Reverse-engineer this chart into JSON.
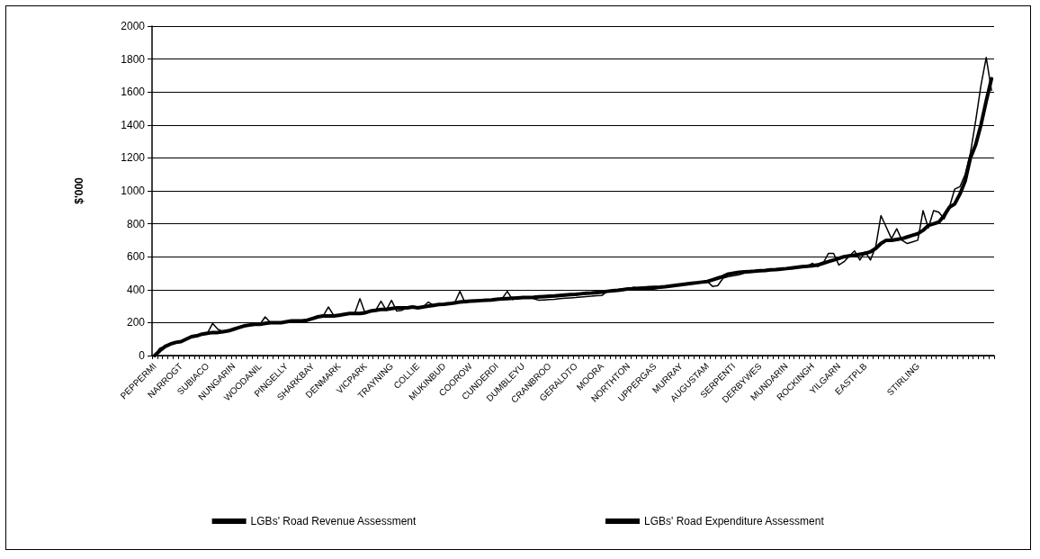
{
  "chart_data": {
    "type": "line",
    "ylabel": "$'000",
    "categories": [
      "PEPPERMI",
      null,
      null,
      null,
      null,
      "NARROGT",
      null,
      null,
      null,
      null,
      "SUBIACO",
      null,
      null,
      null,
      null,
      "NUNGARIN",
      null,
      null,
      null,
      null,
      "WOODANIL",
      null,
      null,
      null,
      null,
      "PINGELLY",
      null,
      null,
      null,
      null,
      "SHARKBAY",
      null,
      null,
      null,
      null,
      "DENMARK",
      null,
      null,
      null,
      null,
      "VICPARK",
      null,
      null,
      null,
      null,
      "TRAYNING",
      null,
      null,
      null,
      null,
      "COLLIE",
      null,
      null,
      null,
      null,
      "MUKINBUD",
      null,
      null,
      null,
      null,
      "COOROW",
      null,
      null,
      null,
      null,
      "CUNDERDI",
      null,
      null,
      null,
      null,
      "DUMBLEYU",
      null,
      null,
      null,
      null,
      "CRANBROO",
      null,
      null,
      null,
      null,
      "GERALDTO",
      null,
      null,
      null,
      null,
      "MOORA",
      null,
      null,
      null,
      null,
      "NORTHTON",
      null,
      null,
      null,
      null,
      "UPPERGAS",
      null,
      null,
      null,
      null,
      "MURRAY",
      null,
      null,
      null,
      null,
      "AUGUSTAM",
      null,
      null,
      null,
      null,
      "SERPENTI",
      null,
      null,
      null,
      null,
      "DERBYWES",
      null,
      null,
      null,
      null,
      "MUNDARIN",
      null,
      null,
      null,
      null,
      "ROCKINGH",
      null,
      null,
      null,
      null,
      "YILGARN",
      null,
      null,
      null,
      null,
      "EASTPLB",
      null,
      null,
      null,
      null,
      null,
      null,
      null,
      null,
      null,
      "STIRLING",
      null,
      null,
      null,
      null,
      null,
      null,
      null,
      null,
      null,
      null,
      null,
      null,
      null,
      null
    ],
    "series": [
      {
        "name": "LGBs' Road Revenue Assessment",
        "color": "#000000",
        "values": [
          0,
          30,
          55,
          70,
          80,
          85,
          100,
          115,
          120,
          130,
          135,
          140,
          140,
          145,
          150,
          160,
          170,
          180,
          185,
          190,
          190,
          195,
          200,
          200,
          200,
          205,
          210,
          210,
          210,
          215,
          225,
          235,
          240,
          240,
          240,
          245,
          250,
          255,
          255,
          255,
          260,
          270,
          275,
          280,
          280,
          285,
          290,
          290,
          290,
          295,
          290,
          295,
          300,
          305,
          310,
          312,
          315,
          320,
          325,
          328,
          330,
          332,
          334,
          336,
          338,
          342,
          344,
          346,
          348,
          350,
          352,
          353,
          354,
          356,
          358,
          360,
          362,
          365,
          368,
          370,
          372,
          375,
          378,
          380,
          383,
          385,
          390,
          393,
          396,
          400,
          405,
          406,
          408,
          410,
          412,
          414,
          415,
          418,
          422,
          426,
          430,
          434,
          438,
          442,
          446,
          450,
          460,
          470,
          480,
          495,
          500,
          505,
          508,
          510,
          512,
          515,
          517,
          520,
          522,
          525,
          528,
          532,
          536,
          540,
          542,
          545,
          550,
          560,
          570,
          580,
          590,
          600,
          605,
          610,
          615,
          620,
          630,
          650,
          680,
          700,
          700,
          705,
          710,
          720,
          730,
          740,
          760,
          790,
          800,
          810,
          850,
          900,
          920,
          980,
          1060,
          1200,
          1280,
          1400,
          1545,
          1680
        ]
      },
      {
        "name": "LGBs' Road Expenditure Assessment",
        "color": "#000000",
        "values": [
          0,
          45,
          55,
          70,
          75,
          85,
          100,
          110,
          120,
          125,
          135,
          195,
          160,
          145,
          150,
          160,
          170,
          180,
          185,
          190,
          190,
          235,
          200,
          200,
          200,
          205,
          210,
          210,
          210,
          215,
          225,
          235,
          240,
          295,
          245,
          245,
          250,
          255,
          255,
          345,
          255,
          270,
          275,
          330,
          275,
          335,
          270,
          275,
          290,
          295,
          290,
          295,
          325,
          305,
          310,
          312,
          315,
          320,
          390,
          320,
          330,
          332,
          334,
          336,
          338,
          342,
          344,
          390,
          340,
          350,
          352,
          353,
          345,
          336,
          338,
          340,
          342,
          345,
          348,
          350,
          352,
          355,
          358,
          360,
          363,
          365,
          390,
          393,
          396,
          400,
          405,
          415,
          408,
          400,
          400,
          405,
          410,
          418,
          422,
          426,
          430,
          434,
          438,
          442,
          446,
          450,
          420,
          425,
          470,
          480,
          485,
          490,
          500,
          505,
          512,
          515,
          517,
          520,
          522,
          525,
          528,
          532,
          536,
          540,
          542,
          560,
          540,
          560,
          620,
          620,
          550,
          570,
          605,
          635,
          580,
          630,
          580,
          660,
          850,
          780,
          710,
          770,
          700,
          680,
          690,
          700,
          880,
          775,
          880,
          870,
          830,
          900,
          1010,
          1025,
          1100,
          1230,
          1425,
          1640,
          1810,
          1610
        ]
      }
    ],
    "ylim": [
      0,
      2000
    ],
    "yticks": [
      0,
      200,
      400,
      600,
      800,
      1000,
      1200,
      1400,
      1600,
      1800,
      2000
    ],
    "grid": "y",
    "legend": "bottom",
    "marker": "none",
    "line_style": "solid"
  }
}
